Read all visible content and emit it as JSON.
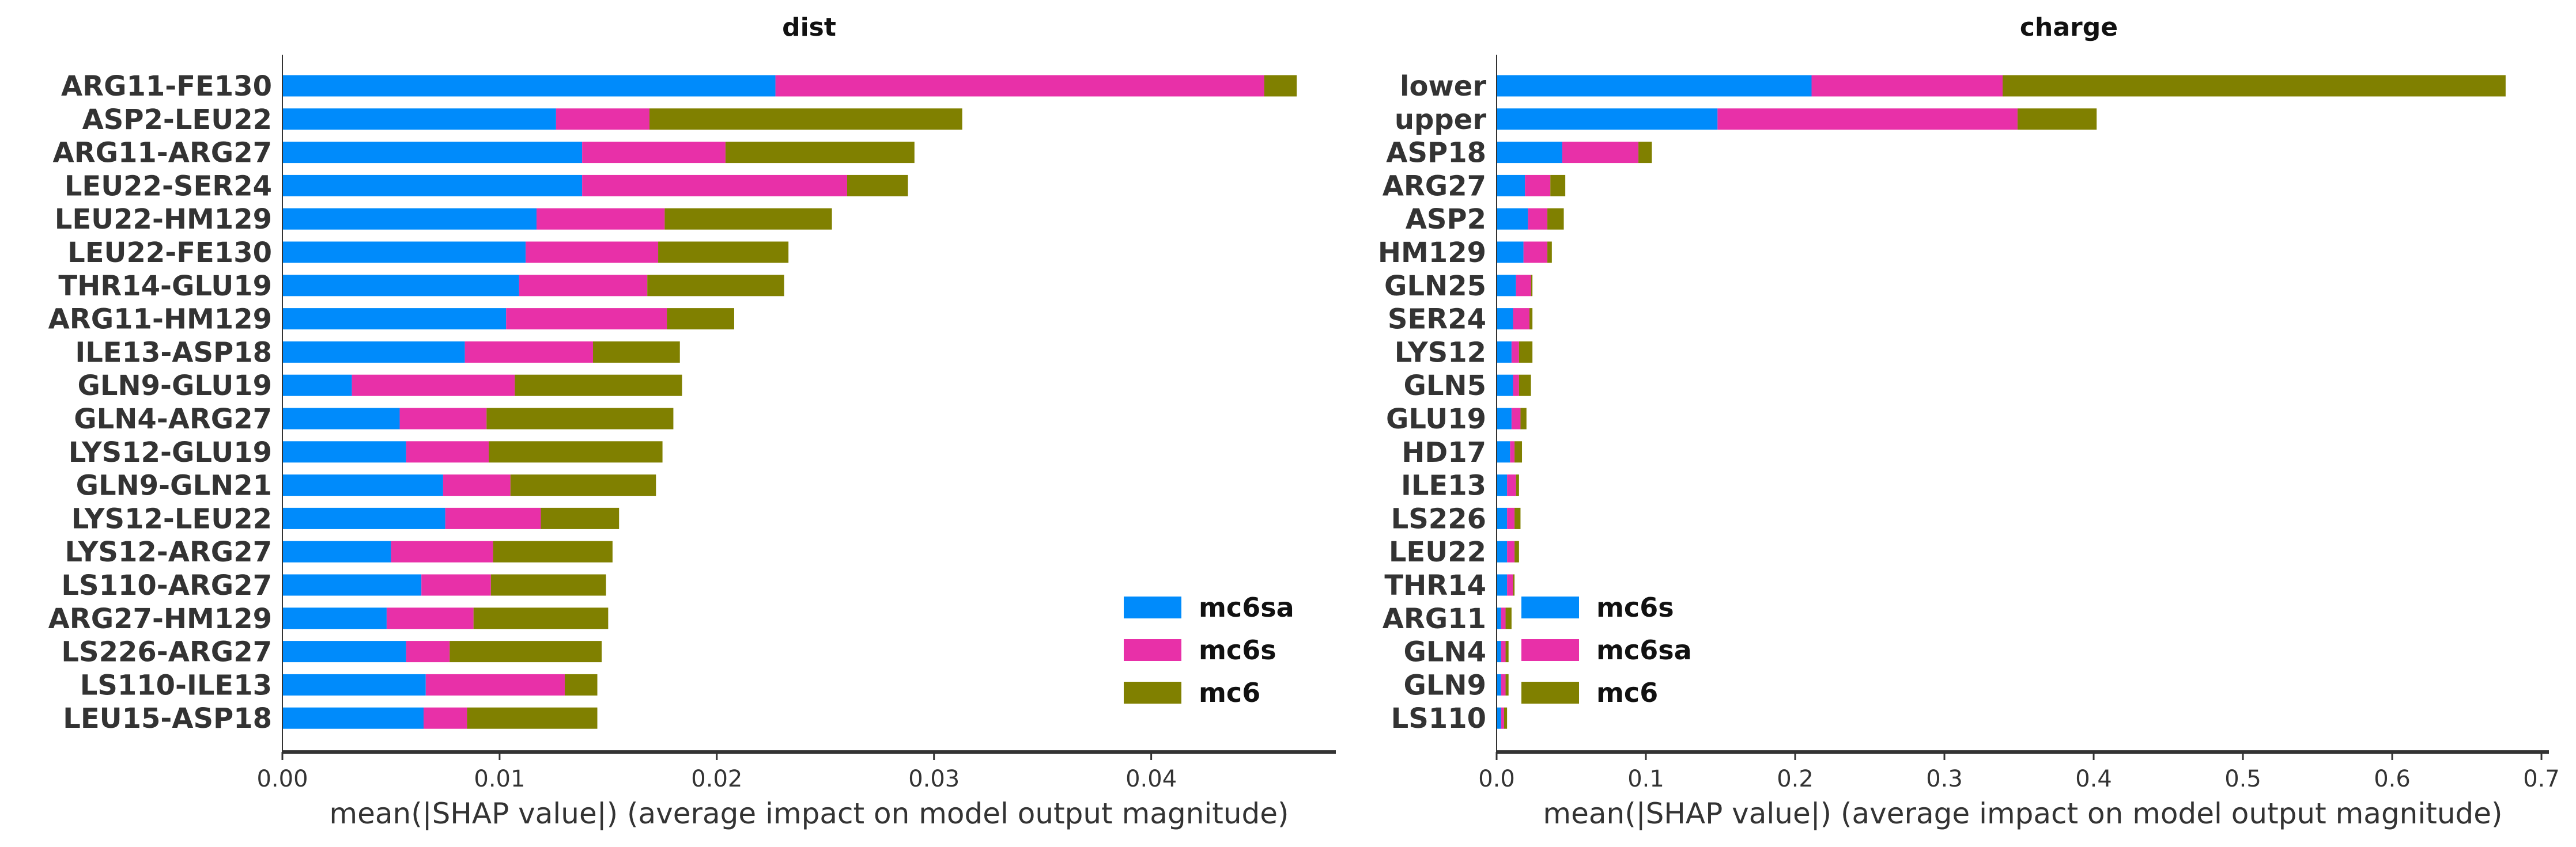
{
  "chart_data": [
    {
      "type": "bar",
      "stacked": true,
      "orientation": "horizontal",
      "title": "dist",
      "xlabel": "mean(|SHAP value|) (average impact on model output magnitude)",
      "xlim": [
        0,
        0.0485
      ],
      "xticks": [
        0.0,
        0.01,
        0.02,
        0.03,
        0.04
      ],
      "xtick_labels": [
        "0.00",
        "0.01",
        "0.02",
        "0.03",
        "0.04"
      ],
      "legend_position": "lower-right",
      "categories": [
        "ARG11-FE130",
        "ASP2-LEU22",
        "ARG11-ARG27",
        "LEU22-SER24",
        "LEU22-HM129",
        "LEU22-FE130",
        "THR14-GLU19",
        "ARG11-HM129",
        "ILE13-ASP18",
        "GLN9-GLU19",
        "GLN4-ARG27",
        "LYS12-GLU19",
        "GLN9-GLN21",
        "LYS12-LEU22",
        "LYS12-ARG27",
        "LS110-ARG27",
        "ARG27-HM129",
        "LS226-ARG27",
        "LS110-ILE13",
        "LEU15-ASP18"
      ],
      "series": [
        {
          "name": "mc6sa",
          "color": "#008bfb",
          "values": [
            0.0227,
            0.0126,
            0.0138,
            0.0138,
            0.0117,
            0.0112,
            0.0109,
            0.0103,
            0.0084,
            0.0032,
            0.0054,
            0.0057,
            0.0074,
            0.0075,
            0.005,
            0.0064,
            0.0048,
            0.0057,
            0.0066,
            0.0065
          ]
        },
        {
          "name": "mc6s",
          "color": "#e830a8",
          "values": [
            0.0225,
            0.0043,
            0.0066,
            0.0122,
            0.0059,
            0.0061,
            0.0059,
            0.0074,
            0.0059,
            0.0075,
            0.004,
            0.0038,
            0.0031,
            0.0044,
            0.0047,
            0.0032,
            0.004,
            0.002,
            0.0064,
            0.002
          ]
        },
        {
          "name": "mc6",
          "color": "#808000",
          "values": [
            0.0015,
            0.0144,
            0.0087,
            0.0028,
            0.0077,
            0.006,
            0.0063,
            0.0031,
            0.004,
            0.0077,
            0.0086,
            0.008,
            0.0067,
            0.0036,
            0.0055,
            0.0053,
            0.0062,
            0.007,
            0.0015,
            0.006
          ]
        }
      ]
    },
    {
      "type": "bar",
      "stacked": true,
      "orientation": "horizontal",
      "title": "charge",
      "xlabel": "mean(|SHAP value|) (average impact on model output magnitude)",
      "xlim": [
        0,
        0.705
      ],
      "xticks": [
        0.0,
        0.1,
        0.2,
        0.3,
        0.4,
        0.5,
        0.6,
        0.7
      ],
      "xtick_labels": [
        "0.0",
        "0.1",
        "0.2",
        "0.3",
        "0.4",
        "0.5",
        "0.6",
        "0.7"
      ],
      "legend_position": "lower-left",
      "categories": [
        "lower",
        "upper",
        "ASP18",
        "ARG27",
        "ASP2",
        "HM129",
        "GLN25",
        "SER24",
        "LYS12",
        "GLN5",
        "GLU19",
        "HD17",
        "ILE13",
        "LS226",
        "LEU22",
        "THR14",
        "ARG11",
        "GLN4",
        "GLN9",
        "LS110"
      ],
      "series": [
        {
          "name": "mc6s",
          "color": "#008bfb",
          "values": [
            0.211,
            0.148,
            0.044,
            0.019,
            0.021,
            0.018,
            0.013,
            0.011,
            0.01,
            0.011,
            0.01,
            0.009,
            0.007,
            0.007,
            0.007,
            0.007,
            0.003,
            0.003,
            0.003,
            0.003
          ]
        },
        {
          "name": "mc6sa",
          "color": "#e830a8",
          "values": [
            0.128,
            0.201,
            0.051,
            0.017,
            0.013,
            0.016,
            0.01,
            0.011,
            0.005,
            0.004,
            0.006,
            0.003,
            0.006,
            0.005,
            0.005,
            0.004,
            0.003,
            0.003,
            0.003,
            0.002
          ]
        },
        {
          "name": "mc6",
          "color": "#808000",
          "values": [
            0.337,
            0.053,
            0.009,
            0.01,
            0.011,
            0.003,
            0.001,
            0.002,
            0.009,
            0.008,
            0.004,
            0.005,
            0.002,
            0.004,
            0.003,
            0.001,
            0.004,
            0.002,
            0.002,
            0.002
          ]
        }
      ]
    }
  ]
}
